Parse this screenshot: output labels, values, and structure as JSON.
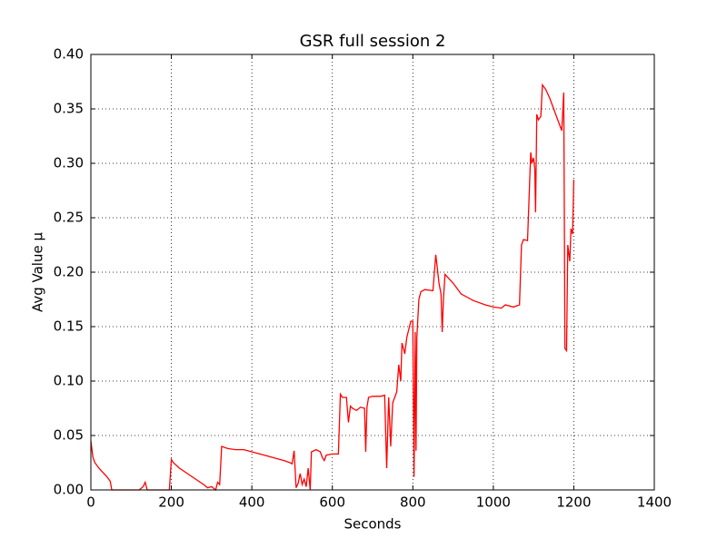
{
  "chart_data": {
    "type": "line",
    "title": "GSR full session 2",
    "xlabel": "Seconds",
    "ylabel": "Avg Value µ",
    "x": [
      0,
      5,
      10,
      20,
      30,
      40,
      48,
      52,
      60,
      100,
      120,
      130,
      135,
      140,
      160,
      195,
      200,
      205,
      220,
      240,
      260,
      280,
      290,
      300,
      310,
      315,
      320,
      325,
      340,
      360,
      380,
      400,
      420,
      440,
      460,
      480,
      495,
      500,
      505,
      510,
      515,
      520,
      525,
      530,
      535,
      540,
      545,
      548,
      560,
      570,
      575,
      580,
      585,
      600,
      615,
      620,
      625,
      635,
      640,
      645,
      650,
      660,
      670,
      680,
      683,
      686,
      690,
      700,
      720,
      730,
      735,
      740,
      745,
      750,
      760,
      765,
      770,
      773,
      780,
      785,
      795,
      800,
      803,
      806,
      808,
      810,
      815,
      820,
      830,
      850,
      857,
      862,
      865,
      870,
      873,
      876,
      880,
      900,
      920,
      950,
      980,
      1000,
      1020,
      1030,
      1050,
      1065,
      1070,
      1075,
      1085,
      1090,
      1093,
      1096,
      1100,
      1103,
      1105,
      1108,
      1112,
      1118,
      1122,
      1130,
      1140,
      1150,
      1165,
      1170,
      1175,
      1178,
      1182,
      1185,
      1190,
      1193,
      1197,
      1200
    ],
    "series": [
      {
        "name": "GSR",
        "color": "#ff0000",
        "values": [
          0.045,
          0.03,
          0.025,
          0.02,
          0.016,
          0.012,
          0.008,
          0.0,
          0.0,
          0.0,
          0.0,
          0.003,
          0.007,
          0.0,
          0.0,
          0.0,
          0.028,
          0.025,
          0.02,
          0.015,
          0.01,
          0.005,
          0.002,
          0.003,
          0.0,
          0.007,
          0.005,
          0.04,
          0.038,
          0.037,
          0.037,
          0.035,
          0.033,
          0.031,
          0.029,
          0.027,
          0.025,
          0.024,
          0.036,
          0.002,
          0.006,
          0.015,
          0.005,
          0.01,
          0.003,
          0.02,
          0.0,
          0.035,
          0.037,
          0.035,
          0.03,
          0.027,
          0.032,
          0.033,
          0.033,
          0.088,
          0.085,
          0.085,
          0.062,
          0.077,
          0.075,
          0.073,
          0.076,
          0.075,
          0.035,
          0.076,
          0.085,
          0.086,
          0.086,
          0.087,
          0.02,
          0.085,
          0.04,
          0.08,
          0.09,
          0.115,
          0.1,
          0.135,
          0.125,
          0.14,
          0.155,
          0.155,
          0.012,
          0.145,
          0.036,
          0.14,
          0.175,
          0.182,
          0.184,
          0.183,
          0.216,
          0.2,
          0.19,
          0.18,
          0.145,
          0.175,
          0.198,
          0.19,
          0.18,
          0.174,
          0.17,
          0.168,
          0.167,
          0.17,
          0.168,
          0.17,
          0.225,
          0.23,
          0.229,
          0.28,
          0.31,
          0.3,
          0.305,
          0.295,
          0.255,
          0.345,
          0.34,
          0.343,
          0.372,
          0.368,
          0.36,
          0.35,
          0.335,
          0.33,
          0.365,
          0.13,
          0.128,
          0.225,
          0.21,
          0.24,
          0.235,
          0.285
        ]
      }
    ],
    "xlim": [
      0,
      1400
    ],
    "xticks": [
      0,
      200,
      400,
      600,
      800,
      1000,
      1200,
      1400
    ],
    "ylim": [
      0,
      0.4
    ],
    "yticks": [
      {
        "value": 0,
        "label": "0.00"
      },
      0.05,
      {
        "value": 0.1,
        "label": "0.10"
      },
      0.15,
      {
        "value": 0.2,
        "label": "0.20"
      },
      0.25,
      {
        "value": 0.3,
        "label": "0.30"
      },
      0.35,
      {
        "value": 0.4,
        "label": "0.40"
      }
    ],
    "grid": true
  }
}
